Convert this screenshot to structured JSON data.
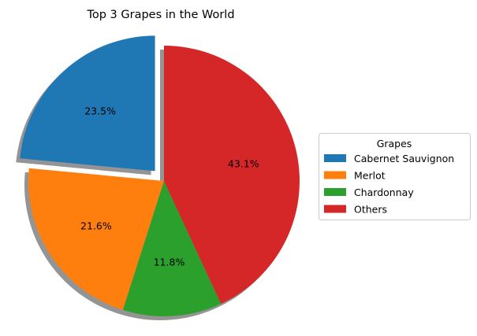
{
  "chart_data": {
    "type": "pie",
    "title": "Top 3 Grapes in the World",
    "slices": [
      {
        "label": "Cabernet Sauvignon",
        "value": 23.5,
        "pct_label": "23.5%",
        "color": "#1f77b4",
        "exploded": true
      },
      {
        "label": "Merlot",
        "value": 21.6,
        "pct_label": "21.6%",
        "color": "#ff7f0e",
        "exploded": false
      },
      {
        "label": "Chardonnay",
        "value": 11.8,
        "pct_label": "11.8%",
        "color": "#2ca02c",
        "exploded": false
      },
      {
        "label": "Others",
        "value": 43.1,
        "pct_label": "43.1%",
        "color": "#d62728",
        "exploded": false
      }
    ],
    "start_angle_deg": 90,
    "direction": "counterclockwise",
    "shadow": true,
    "legend": {
      "title": "Grapes",
      "placement": "right"
    }
  }
}
